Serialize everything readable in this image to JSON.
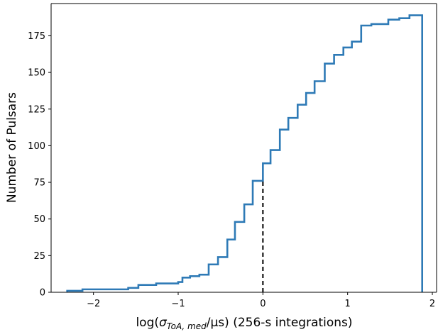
{
  "chart_data": {
    "type": "line",
    "subtype": "cumulative step histogram",
    "xlabel": {
      "prefix": "log(",
      "sigma": "σ",
      "subscript": "ToA, med",
      "slash_unit": "/μs",
      "suffix": ") (256-s integrations)"
    },
    "ylabel": "Number of Pulsars",
    "xlim": [
      -2.5,
      2.05
    ],
    "ylim": [
      0,
      197
    ],
    "xticks": [
      -2,
      -1,
      0,
      1,
      2
    ],
    "xtick_labels": [
      "−2",
      "−1",
      "0",
      "1",
      "2"
    ],
    "yticks": [
      0,
      25,
      50,
      75,
      100,
      125,
      150,
      175
    ],
    "ytick_labels": [
      "0",
      "25",
      "50",
      "75",
      "100",
      "125",
      "150",
      "175"
    ],
    "grid": false,
    "series": [
      {
        "color": "#2e7ab6",
        "bin_edges": [
          -2.31,
          -2.13,
          -1.59,
          -1.47,
          -1.26,
          -1.0,
          -0.95,
          -0.86,
          -0.75,
          -0.64,
          -0.53,
          -0.42,
          -0.33,
          -0.22,
          -0.12,
          0.0,
          0.09,
          0.2,
          0.3,
          0.41,
          0.51,
          0.61,
          0.73,
          0.84,
          0.95,
          1.05,
          1.16,
          1.28,
          1.48,
          1.61,
          1.73,
          1.88
        ],
        "counts": [
          1,
          2,
          3,
          5,
          6,
          7,
          10,
          11,
          12,
          19,
          24,
          36,
          48,
          60,
          76,
          88,
          97,
          111,
          119,
          128,
          136,
          144,
          156,
          162,
          167,
          171,
          182,
          183,
          186,
          187,
          189
        ]
      }
    ],
    "annotations": [
      {
        "type": "vertical-dashed-line",
        "x": 0,
        "y_from": 0,
        "y_to": 76,
        "color": "#000000"
      }
    ]
  }
}
